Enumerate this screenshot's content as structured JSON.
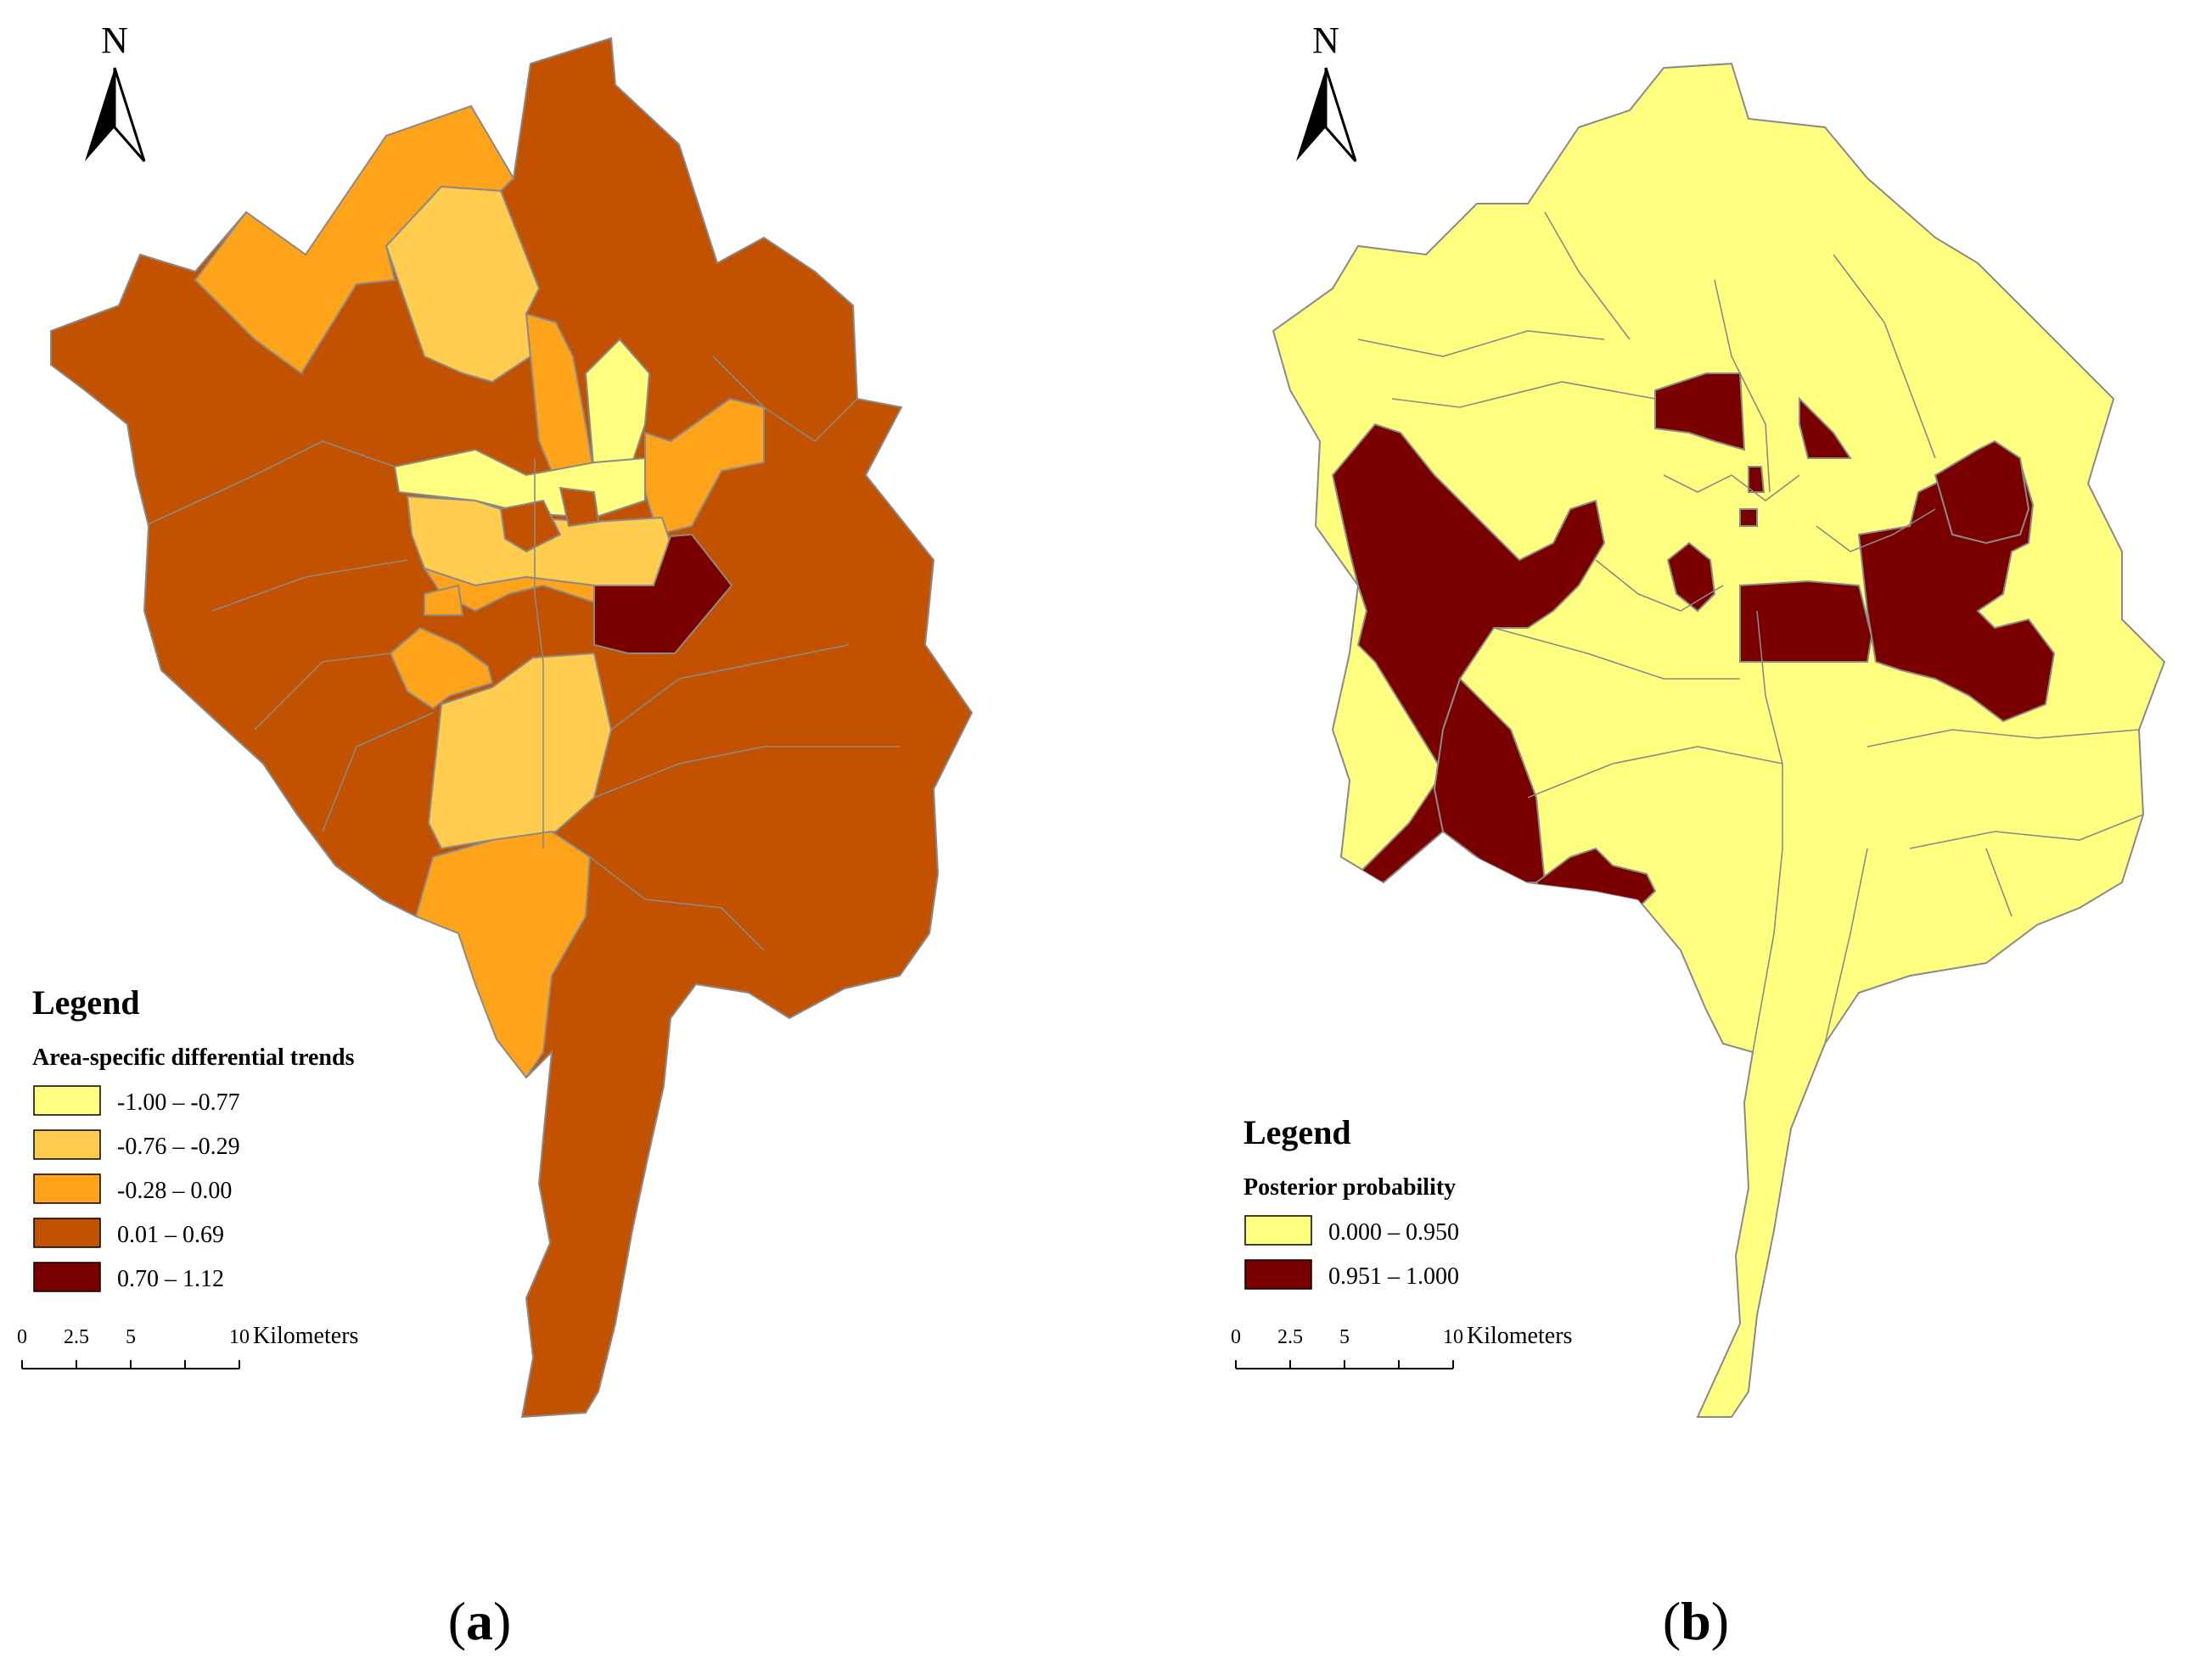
{
  "colors": {
    "outline": "#8a8a8a",
    "ink": "#000000"
  },
  "panels": [
    {
      "key": "a",
      "caption": "a",
      "north_label": "N",
      "legend": {
        "heading": "Legend",
        "title": "Area-specific differential trends",
        "classes": [
          {
            "label": "-1.00 – -0.77",
            "color": "#ffff80"
          },
          {
            "label": "-0.76 – -0.29",
            "color": "#ffcc4d"
          },
          {
            "label": "-0.28 – 0.00",
            "color": "#ffa31a"
          },
          {
            "label": "0.01 – 0.69",
            "color": "#c25200"
          },
          {
            "label": "0.70 – 1.12",
            "color": "#7a0000"
          }
        ]
      },
      "scale_bar": {
        "ticks": [
          "0",
          "2.5",
          "5",
          "10"
        ],
        "unit": "Kilometers"
      }
    },
    {
      "key": "b",
      "caption": "b",
      "north_label": "N",
      "legend": {
        "heading": "Legend",
        "title": "Posterior probability",
        "classes": [
          {
            "label": "0.000 – 0.950",
            "color": "#ffff80"
          },
          {
            "label": "0.951 – 1.000",
            "color": "#7a0000"
          }
        ]
      },
      "scale_bar": {
        "ticks": [
          "0",
          "2.5",
          "5",
          "10"
        ],
        "unit": "Kilometers"
      }
    }
  ]
}
